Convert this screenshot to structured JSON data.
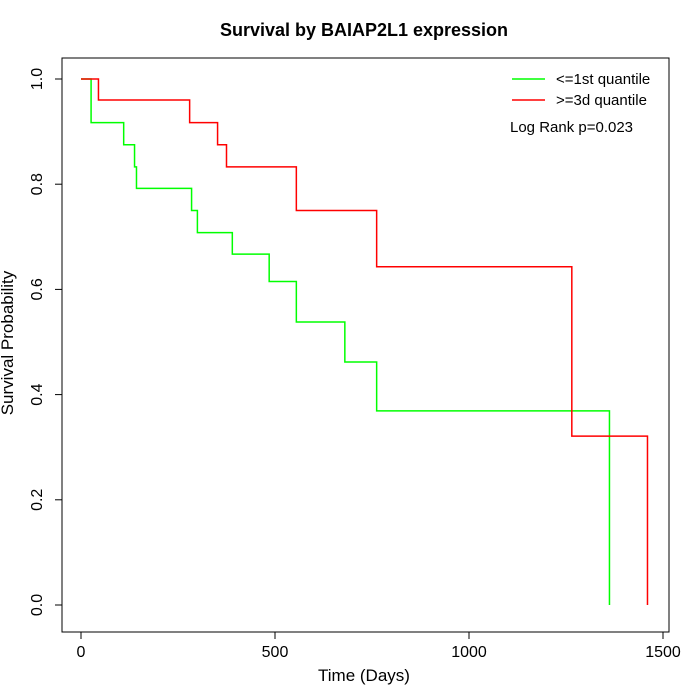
{
  "chart_data": {
    "type": "line",
    "title": "Survival by BAIAP2L1 expression",
    "xlabel": "Time (Days)",
    "ylabel": "Survival Probability",
    "xlim": [
      0,
      1500
    ],
    "ylim": [
      0,
      1
    ],
    "xticks": [
      0,
      500,
      1000,
      1500
    ],
    "yticks": [
      0.0,
      0.2,
      0.4,
      0.6,
      0.8,
      1.0
    ],
    "xtick_labels": [
      "0",
      "500",
      "1000",
      "1500"
    ],
    "ytick_labels": [
      "0.0",
      "0.2",
      "0.4",
      "0.6",
      "0.8",
      "1.0"
    ],
    "grid": false,
    "legend_position": "top-right",
    "annotation": "Log Rank p=0.023",
    "series": [
      {
        "name": "<=1st quantile",
        "color": "#00ff00",
        "step": true,
        "x": [
          0,
          22,
          26,
          105,
          110,
          138,
          143,
          285,
          300,
          390,
          485,
          555,
          680,
          762,
          1362,
          1362
        ],
        "y": [
          1.0,
          1.0,
          0.917,
          0.917,
          0.875,
          0.833,
          0.792,
          0.75,
          0.708,
          0.667,
          0.615,
          0.538,
          0.462,
          0.369,
          0.246,
          0.0
        ]
      },
      {
        "name": ">=3d quantile",
        "color": "#ff0000",
        "step": true,
        "x": [
          0,
          45,
          280,
          352,
          375,
          555,
          762,
          1265,
          1460
        ],
        "y": [
          1.0,
          0.96,
          0.917,
          0.875,
          0.833,
          0.75,
          0.643,
          0.321,
          0.0
        ]
      }
    ]
  }
}
